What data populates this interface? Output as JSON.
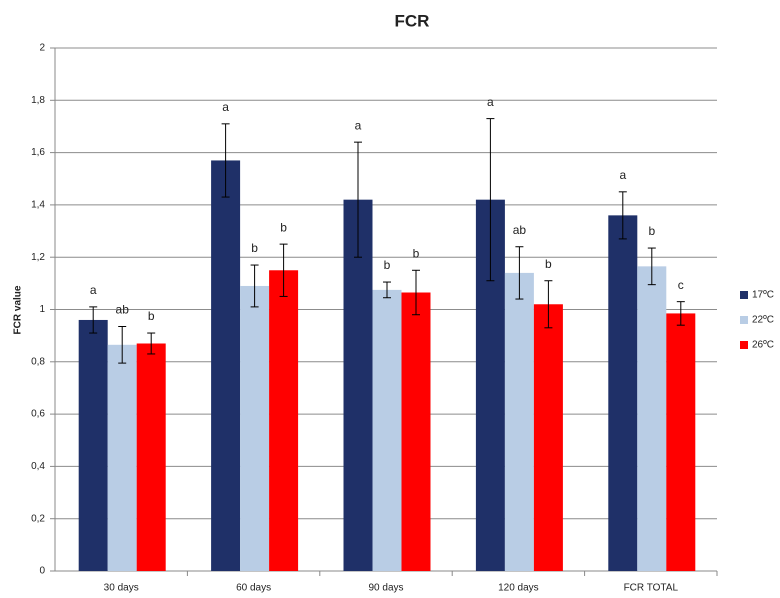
{
  "chart_data": {
    "type": "bar",
    "title": "FCR",
    "y_label": "FCR value",
    "categories": [
      "30 days",
      "60 days",
      "90 days",
      "120 days",
      "FCR TOTAL"
    ],
    "series": [
      {
        "name": "17ºC",
        "color": "#1f3068",
        "values": [
          0.96,
          1.57,
          1.42,
          1.42,
          1.36
        ],
        "errors": [
          0.05,
          0.14,
          0.22,
          0.31,
          0.09
        ],
        "letters": [
          "a",
          "a",
          "a",
          "a",
          "a"
        ]
      },
      {
        "name": "22ºC",
        "color": "#b9cde5",
        "values": [
          0.865,
          1.09,
          1.075,
          1.14,
          1.165
        ],
        "errors": [
          0.07,
          0.08,
          0.03,
          0.1,
          0.07
        ],
        "letters": [
          "ab",
          "b",
          "b",
          "ab",
          "b"
        ]
      },
      {
        "name": "26ºC",
        "color": "#ff0000",
        "values": [
          0.87,
          1.15,
          1.065,
          1.02,
          0.985
        ],
        "errors": [
          0.04,
          0.1,
          0.085,
          0.09,
          0.045
        ],
        "letters": [
          "b",
          "b",
          "b",
          "b",
          "c"
        ]
      }
    ],
    "ylim": [
      0,
      2
    ],
    "yticks": [
      0,
      {
        "value": 0.2,
        "label": "0,2"
      },
      {
        "value": 0.4,
        "label": "0,4"
      },
      {
        "value": 0.6,
        "label": "0,6"
      },
      {
        "value": 0.8,
        "label": "0,8"
      },
      1,
      {
        "value": 1.2,
        "label": "1,2"
      },
      {
        "value": 1.4,
        "label": "1,4"
      },
      {
        "value": 1.6,
        "label": "1,6"
      },
      {
        "value": 1.8,
        "label": "1,8"
      },
      2
    ],
    "grid": true,
    "legend": "right"
  }
}
